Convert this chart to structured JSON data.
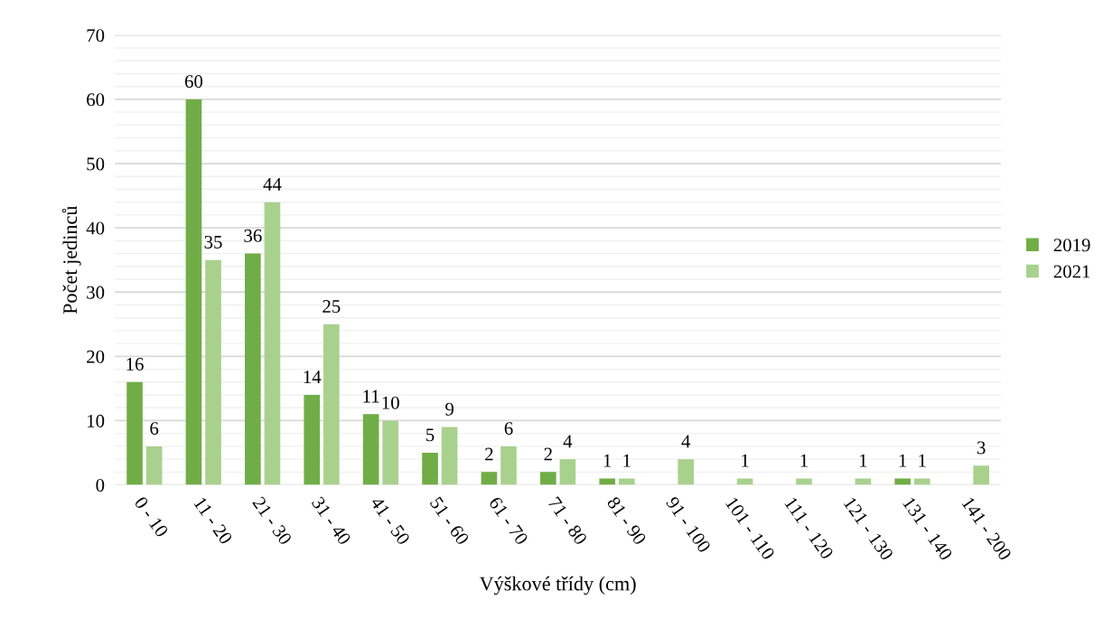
{
  "chart_data": {
    "type": "bar",
    "xlabel": "Výškové třídy (cm)",
    "ylabel": "Počet jedinců",
    "categories": [
      "0 - 10",
      "11 - 20",
      "21 - 30",
      "31 - 40",
      "41 - 50",
      "51 - 60",
      "61 - 70",
      "71 - 80",
      "81 - 90",
      "91 - 100",
      "101 - 110",
      "111 - 120",
      "121 - 130",
      "131 - 140",
      "141 - 200"
    ],
    "series": [
      {
        "name": "2019",
        "color": "#70ad47",
        "values": [
          16,
          60,
          36,
          14,
          11,
          5,
          2,
          2,
          1,
          null,
          null,
          null,
          null,
          1,
          null
        ]
      },
      {
        "name": "2021",
        "color": "#a9d18e",
        "values": [
          6,
          35,
          44,
          25,
          10,
          9,
          6,
          4,
          1,
          4,
          1,
          1,
          1,
          1,
          3
        ]
      }
    ],
    "ylim": [
      0,
      70
    ],
    "yticks": [
      0,
      {
        "value": 2,
        "label": null
      },
      {
        "value": 4,
        "label": null
      },
      {
        "value": 6,
        "label": null
      },
      {
        "value": 8,
        "label": null
      },
      10,
      {
        "value": 12,
        "label": null
      },
      {
        "value": 14,
        "label": null
      },
      {
        "value": 16,
        "label": null
      },
      {
        "value": 18,
        "label": null
      },
      20,
      {
        "value": 22,
        "label": null
      },
      {
        "value": 24,
        "label": null
      },
      {
        "value": 26,
        "label": null
      },
      {
        "value": 28,
        "label": null
      },
      30,
      {
        "value": 32,
        "label": null
      },
      {
        "value": 34,
        "label": null
      },
      {
        "value": 36,
        "label": null
      },
      {
        "value": 38,
        "label": null
      },
      40,
      {
        "value": 42,
        "label": null
      },
      {
        "value": 44,
        "label": null
      },
      {
        "value": 46,
        "label": null
      },
      {
        "value": 48,
        "label": null
      },
      50,
      {
        "value": 52,
        "label": null
      },
      {
        "value": 54,
        "label": null
      },
      {
        "value": 56,
        "label": null
      },
      {
        "value": 58,
        "label": null
      },
      60,
      {
        "value": 62,
        "label": null
      },
      {
        "value": 64,
        "label": null
      },
      {
        "value": 66,
        "label": null
      },
      {
        "value": 68,
        "label": null
      },
      70
    ],
    "grid": "y",
    "legend": "right",
    "data_labels": true
  }
}
